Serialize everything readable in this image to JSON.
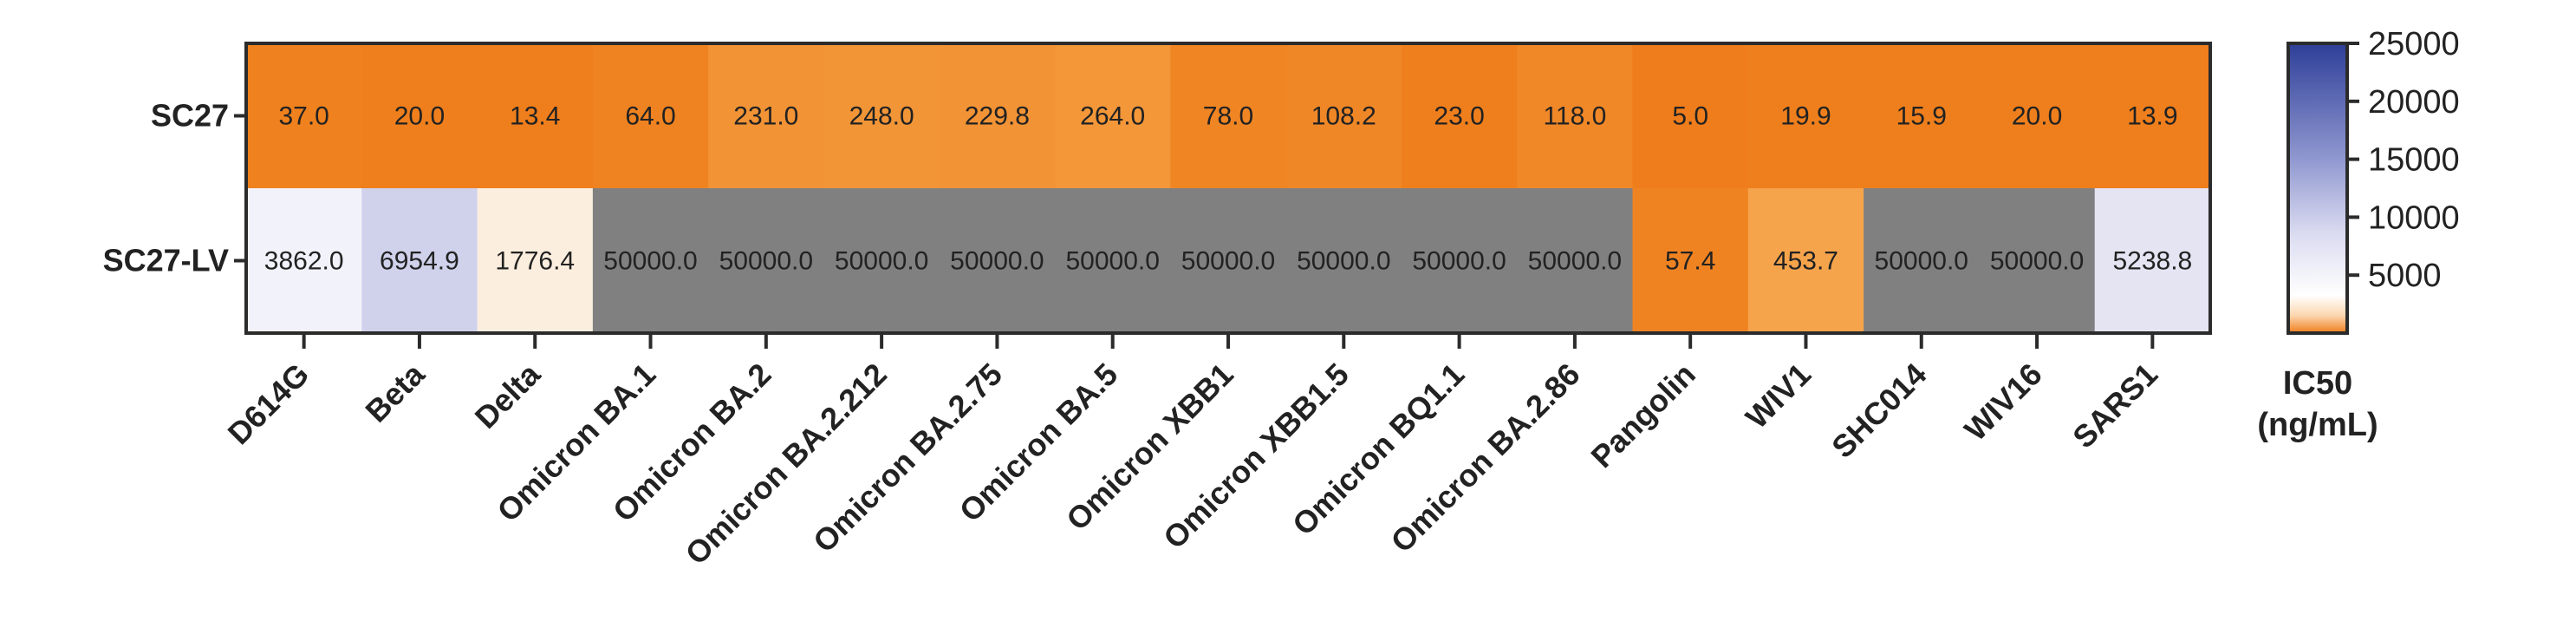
{
  "chart_data": {
    "type": "heatmap",
    "rows": [
      "SC27",
      "SC27-LV"
    ],
    "columns": [
      "D614G",
      "Beta",
      "Delta",
      "Omicron BA.1",
      "Omicron BA.2",
      "Omicron BA.2.212",
      "Omicron BA.2.75",
      "Omicron BA.5",
      "Omicron XBB1",
      "Omicron XBB1.5",
      "Omicron BQ1.1",
      "Omicron BA.2.86",
      "Pangolin",
      "WIV1",
      "SHC014",
      "WIV16",
      "SARS1"
    ],
    "values": [
      [
        37.0,
        20.0,
        13.4,
        64.0,
        231.0,
        248.0,
        229.8,
        264.0,
        78.0,
        108.2,
        23.0,
        118.0,
        5.0,
        19.9,
        15.9,
        20.0,
        13.9
      ],
      [
        3862.0,
        6954.9,
        1776.4,
        50000.0,
        50000.0,
        50000.0,
        50000.0,
        50000.0,
        50000.0,
        50000.0,
        50000.0,
        50000.0,
        57.4,
        453.7,
        50000.0,
        50000.0,
        5238.8
      ]
    ],
    "value_labels": [
      [
        "37.0",
        "20.0",
        "13.4",
        "64.0",
        "231.0",
        "248.0",
        "229.8",
        "264.0",
        "78.0",
        "108.2",
        "23.0",
        "118.0",
        "5.0",
        "19.9",
        "15.9",
        "20.0",
        "13.9"
      ],
      [
        "3862.0",
        "6954.9",
        "1776.4",
        "50000.0",
        "50000.0",
        "50000.0",
        "50000.0",
        "50000.0",
        "50000.0",
        "50000.0",
        "50000.0",
        "50000.0",
        "57.4",
        "453.7",
        "50000.0",
        "50000.0",
        "5238.8"
      ]
    ],
    "colorbar": {
      "range": [
        0,
        25000
      ],
      "ticks": [
        5000,
        10000,
        15000,
        20000,
        25000
      ],
      "tick_labels": [
        "5000",
        "10000",
        "15000",
        "20000",
        "25000"
      ],
      "title_line1": "IC50",
      "title_line2": "(ng/mL)",
      "colors": {
        "low": "#ef7d1a",
        "mid": "#ffffff",
        "high": "#2e3f98",
        "out_of_range": "#808080"
      }
    }
  }
}
